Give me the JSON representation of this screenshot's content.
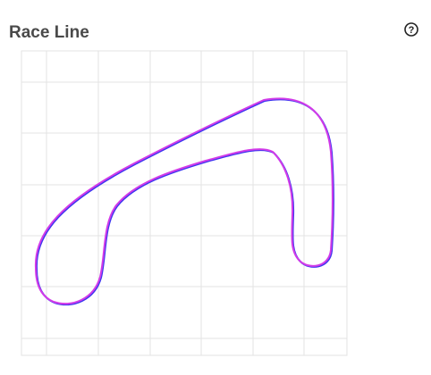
{
  "header": {
    "title": "Race Line",
    "help": "?"
  }
}
